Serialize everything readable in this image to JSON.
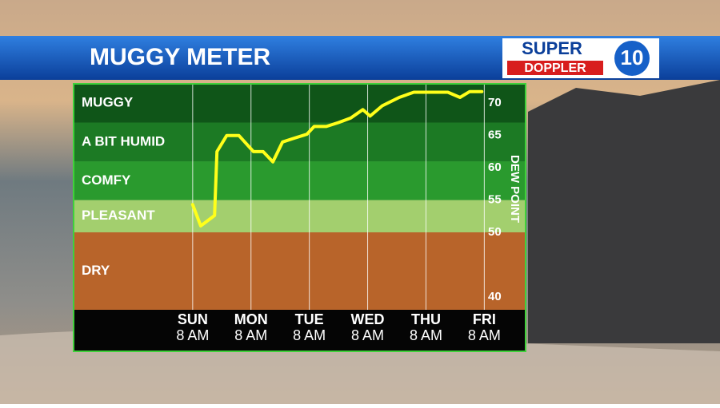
{
  "chart_data": {
    "type": "line",
    "title": "MUGGY METER",
    "logo": {
      "top": "SUPER",
      "bottom": "DOPPLER",
      "number": "10"
    },
    "y_label": "DEW POINT",
    "ylim": [
      38,
      73
    ],
    "yticks": [
      40,
      50,
      55,
      60,
      65,
      70
    ],
    "xlim": [
      -49,
      137
    ],
    "xticks": [
      {
        "value": 0,
        "label": "SUN"
      },
      {
        "value": 24,
        "label": "MON"
      },
      {
        "value": 48,
        "label": "TUE"
      },
      {
        "value": 72,
        "label": "WED"
      },
      {
        "value": 96,
        "label": "THU"
      },
      {
        "value": 120,
        "label": "FRI"
      }
    ],
    "xtick_sublabels": [
      "8 AM",
      "8 AM",
      "8 AM",
      "8 AM",
      "8 AM",
      "8 AM"
    ],
    "zones": [
      {
        "label": "DRY",
        "from": null,
        "to": 50,
        "color": "#b8642a"
      },
      {
        "label": "PLEASANT",
        "from": 50,
        "to": 55,
        "color": "#a3cf6e"
      },
      {
        "label": "COMFY",
        "from": 55,
        "to": 61,
        "color": "#2a9a2e"
      },
      {
        "label": "A BIT HUMID",
        "from": 61,
        "to": 67,
        "color": "#1c7a24"
      },
      {
        "label": "MUGGY",
        "from": 67,
        "to": null,
        "color": "#0f5518"
      }
    ],
    "series": [
      {
        "color": "#ffff1a",
        "x": [
          0,
          3.3,
          9,
          10,
          14,
          19,
          25,
          29,
          33,
          37,
          42,
          47,
          50,
          55,
          60,
          65,
          70,
          73,
          78,
          85,
          91,
          105,
          110,
          114,
          119
        ],
        "values": [
          54.3,
          51,
          52.6,
          62.5,
          65,
          65,
          62.5,
          62.5,
          60.9,
          64,
          64.6,
          65.2,
          66.4,
          66.4,
          67,
          67.7,
          69,
          68,
          69.6,
          70.9,
          71.7,
          71.7,
          70.9,
          71.8,
          71.8
        ]
      }
    ]
  }
}
